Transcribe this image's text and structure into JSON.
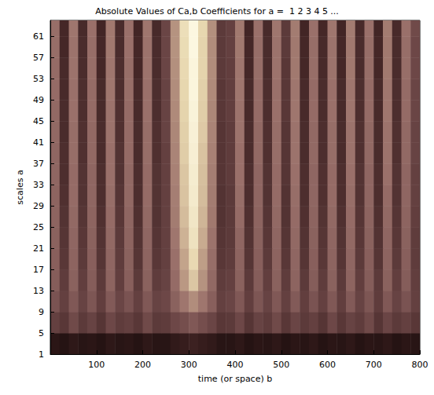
{
  "chart_data": {
    "type": "heatmap",
    "title": "Absolute Values of Ca,b Coefficients for a =  1 2 3 4 5 ...",
    "x_label": "time (or space) b",
    "y_label": "scales a",
    "x": [
      10,
      30,
      50,
      70,
      90,
      110,
      130,
      150,
      170,
      190,
      210,
      230,
      250,
      270,
      290,
      310,
      330,
      350,
      370,
      390,
      410,
      430,
      450,
      470,
      490,
      510,
      530,
      550,
      570,
      590,
      610,
      630,
      650,
      670,
      690,
      710,
      730,
      750,
      770,
      790
    ],
    "y": [
      3,
      7,
      11,
      15,
      19,
      23,
      27,
      31,
      35,
      39,
      43,
      47,
      51,
      55,
      59,
      63
    ],
    "values": [
      [
        10,
        8,
        11,
        9,
        10,
        8,
        11,
        9,
        10,
        8,
        11,
        9,
        9,
        12,
        14,
        16,
        14,
        12,
        9,
        9,
        11,
        8,
        10,
        9,
        11,
        8,
        10,
        9,
        11,
        8,
        10,
        9,
        11,
        8,
        10,
        9,
        11,
        8,
        10,
        9
      ],
      [
        30,
        26,
        34,
        27,
        31,
        25,
        33,
        28,
        30,
        26,
        34,
        27,
        28,
        33,
        36,
        40,
        36,
        32,
        26,
        27,
        33,
        25,
        31,
        28,
        34,
        26,
        32,
        27,
        30,
        25,
        33,
        26,
        31,
        28,
        34,
        25,
        32,
        27,
        30,
        26
      ],
      [
        38,
        30,
        40,
        31,
        39,
        29,
        41,
        32,
        38,
        30,
        40,
        31,
        33,
        44,
        52,
        60,
        52,
        43,
        30,
        32,
        40,
        29,
        39,
        31,
        40,
        30,
        41,
        29,
        38,
        30,
        40,
        29,
        41,
        31,
        39,
        28,
        40,
        31,
        38,
        30
      ],
      [
        42,
        28,
        44,
        29,
        42,
        27,
        45,
        29,
        43,
        27,
        44,
        28,
        31,
        48,
        64,
        78,
        62,
        47,
        28,
        30,
        44,
        27,
        42,
        29,
        44,
        28,
        45,
        27,
        42,
        28,
        44,
        27,
        45,
        29,
        42,
        27,
        44,
        29,
        42,
        29
      ],
      [
        43,
        26,
        45,
        27,
        43,
        25,
        46,
        28,
        44,
        25,
        45,
        26,
        30,
        50,
        68,
        84,
        66,
        49,
        26,
        28,
        45,
        25,
        43,
        27,
        45,
        26,
        46,
        25,
        43,
        26,
        45,
        25,
        46,
        27,
        43,
        25,
        45,
        27,
        43,
        28
      ],
      [
        44,
        25,
        46,
        26,
        44,
        24,
        47,
        27,
        45,
        24,
        46,
        25,
        30,
        52,
        72,
        88,
        70,
        51,
        25,
        27,
        46,
        24,
        44,
        26,
        46,
        25,
        47,
        24,
        44,
        25,
        46,
        24,
        47,
        26,
        44,
        24,
        46,
        26,
        44,
        28
      ],
      [
        45,
        24,
        47,
        25,
        45,
        23,
        48,
        26,
        46,
        23,
        47,
        24,
        30,
        54,
        75,
        90,
        73,
        53,
        24,
        27,
        48,
        23,
        45,
        25,
        47,
        24,
        48,
        23,
        45,
        24,
        47,
        23,
        48,
        25,
        45,
        23,
        47,
        25,
        45,
        29
      ],
      [
        45,
        23,
        48,
        24,
        46,
        22,
        49,
        25,
        47,
        22,
        48,
        24,
        30,
        55,
        77,
        92,
        75,
        54,
        24,
        27,
        49,
        22,
        46,
        24,
        48,
        24,
        49,
        22,
        46,
        23,
        48,
        22,
        49,
        24,
        46,
        22,
        48,
        24,
        46,
        30
      ],
      [
        46,
        22,
        48,
        24,
        46,
        22,
        50,
        24,
        47,
        22,
        48,
        24,
        30,
        56,
        78,
        93,
        76,
        55,
        25,
        28,
        50,
        22,
        46,
        24,
        48,
        25,
        50,
        22,
        46,
        23,
        48,
        22,
        50,
        24,
        46,
        22,
        50,
        24,
        46,
        30
      ],
      [
        46,
        22,
        49,
        23,
        47,
        21,
        50,
        24,
        48,
        21,
        49,
        23,
        30,
        57,
        80,
        94,
        77,
        56,
        25,
        28,
        50,
        21,
        47,
        23,
        49,
        25,
        51,
        21,
        47,
        22,
        49,
        21,
        51,
        23,
        47,
        21,
        51,
        23,
        47,
        31
      ],
      [
        47,
        21,
        49,
        23,
        47,
        21,
        51,
        23,
        48,
        21,
        49,
        23,
        31,
        58,
        81,
        95,
        79,
        57,
        25,
        28,
        51,
        21,
        47,
        23,
        49,
        25,
        51,
        21,
        47,
        22,
        49,
        21,
        51,
        23,
        47,
        21,
        51,
        23,
        47,
        31
      ],
      [
        47,
        21,
        50,
        22,
        48,
        20,
        51,
        23,
        48,
        20,
        50,
        22,
        31,
        59,
        82,
        96,
        80,
        58,
        26,
        29,
        51,
        20,
        48,
        22,
        50,
        26,
        52,
        20,
        48,
        21,
        50,
        20,
        52,
        22,
        48,
        20,
        52,
        22,
        48,
        32
      ],
      [
        48,
        20,
        50,
        22,
        48,
        20,
        52,
        22,
        49,
        20,
        50,
        22,
        31,
        60,
        83,
        97,
        81,
        59,
        26,
        29,
        52,
        20,
        48,
        22,
        50,
        26,
        52,
        20,
        48,
        21,
        50,
        20,
        52,
        22,
        48,
        20,
        52,
        22,
        48,
        32
      ],
      [
        48,
        20,
        51,
        21,
        49,
        19,
        52,
        22,
        49,
        19,
        51,
        21,
        32,
        61,
        84,
        97,
        82,
        60,
        27,
        29,
        52,
        19,
        49,
        21,
        51,
        26,
        53,
        19,
        49,
        20,
        51,
        19,
        53,
        21,
        49,
        19,
        53,
        21,
        49,
        33
      ],
      [
        49,
        19,
        51,
        21,
        49,
        19,
        53,
        21,
        50,
        19,
        51,
        21,
        32,
        62,
        85,
        98,
        82,
        60,
        27,
        30,
        53,
        19,
        49,
        21,
        51,
        27,
        53,
        19,
        49,
        20,
        51,
        19,
        53,
        21,
        49,
        19,
        53,
        21,
        49,
        33
      ],
      [
        49,
        19,
        52,
        20,
        50,
        18,
        53,
        21,
        50,
        18,
        52,
        20,
        32,
        62,
        86,
        98,
        83,
        61,
        27,
        30,
        53,
        18,
        50,
        20,
        52,
        27,
        54,
        18,
        50,
        19,
        52,
        18,
        54,
        20,
        50,
        18,
        54,
        20,
        50,
        34
      ]
    ],
    "zlim": [
      0,
      100
    ],
    "xlim": [
      0,
      800
    ],
    "xticks": [
      100,
      200,
      300,
      400,
      500,
      600,
      700,
      800
    ],
    "ylim": [
      1,
      64
    ],
    "yticks": [
      1,
      5,
      9,
      13,
      17,
      21,
      25,
      29,
      33,
      37,
      41,
      45,
      49,
      53,
      57,
      61
    ]
  }
}
